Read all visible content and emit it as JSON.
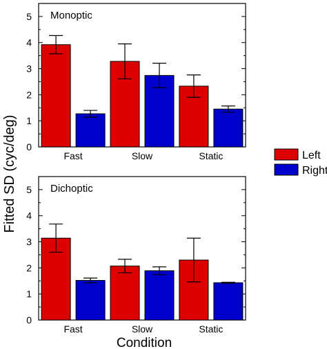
{
  "shared": {
    "ylabel": "Fitted SD (cyc/deg)",
    "xlabel": "Condition"
  },
  "legend": {
    "placement": "right",
    "items": [
      {
        "label": "Left",
        "color": "#dd0000"
      },
      {
        "label": "Right",
        "color": "#0000cc"
      }
    ]
  },
  "chart_data": [
    {
      "type": "bar",
      "title": "Monoptic",
      "categories": [
        "Fast",
        "Slow",
        "Static"
      ],
      "ylim": [
        0,
        5.5
      ],
      "yticks": [
        0,
        1,
        2,
        3,
        4,
        5
      ],
      "series": [
        {
          "name": "Left",
          "color": "#dd0000",
          "values": [
            3.92,
            3.28,
            2.33
          ],
          "err": [
            0.35,
            0.67,
            0.43
          ]
        },
        {
          "name": "Right",
          "color": "#0000cc",
          "values": [
            1.27,
            2.74,
            1.45
          ],
          "err": [
            0.13,
            0.47,
            0.12
          ]
        }
      ]
    },
    {
      "type": "bar",
      "title": "Dichoptic",
      "categories": [
        "Fast",
        "Slow",
        "Static"
      ],
      "ylim": [
        0,
        5.5
      ],
      "yticks": [
        0,
        1,
        2,
        3,
        4,
        5
      ],
      "series": [
        {
          "name": "Left",
          "color": "#dd0000",
          "values": [
            3.14,
            2.07,
            2.3
          ],
          "err": [
            0.54,
            0.26,
            0.84
          ]
        },
        {
          "name": "Right",
          "color": "#0000cc",
          "values": [
            1.52,
            1.89,
            1.43
          ],
          "err": [
            0.09,
            0.15,
            0.02
          ]
        }
      ]
    }
  ]
}
